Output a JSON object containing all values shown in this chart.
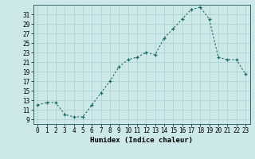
{
  "x": [
    0,
    1,
    2,
    3,
    4,
    5,
    6,
    7,
    8,
    9,
    10,
    11,
    12,
    13,
    14,
    15,
    16,
    17,
    18,
    19,
    20,
    21,
    22,
    23
  ],
  "y": [
    12,
    12.5,
    12.5,
    10,
    9.5,
    9.5,
    12,
    14.5,
    17,
    20,
    21.5,
    22,
    23,
    22.5,
    26,
    28,
    30,
    32,
    32.5,
    30,
    22,
    21.5,
    21.5,
    18.5
  ],
  "xlabel": "Humidex (Indice chaleur)",
  "line_color": "#1a6b5e",
  "marker": "+",
  "bg_color": "#cce8e8",
  "grid_color": "#aacfcf",
  "tick_label_size": 5.5,
  "xlabel_size": 6.5,
  "ylim": [
    8,
    33
  ],
  "xlim": [
    -0.5,
    23.5
  ],
  "yticks": [
    9,
    11,
    13,
    15,
    17,
    19,
    21,
    23,
    25,
    27,
    29,
    31
  ],
  "xticks": [
    0,
    1,
    2,
    3,
    4,
    5,
    6,
    7,
    8,
    9,
    10,
    11,
    12,
    13,
    14,
    15,
    16,
    17,
    18,
    19,
    20,
    21,
    22,
    23
  ]
}
